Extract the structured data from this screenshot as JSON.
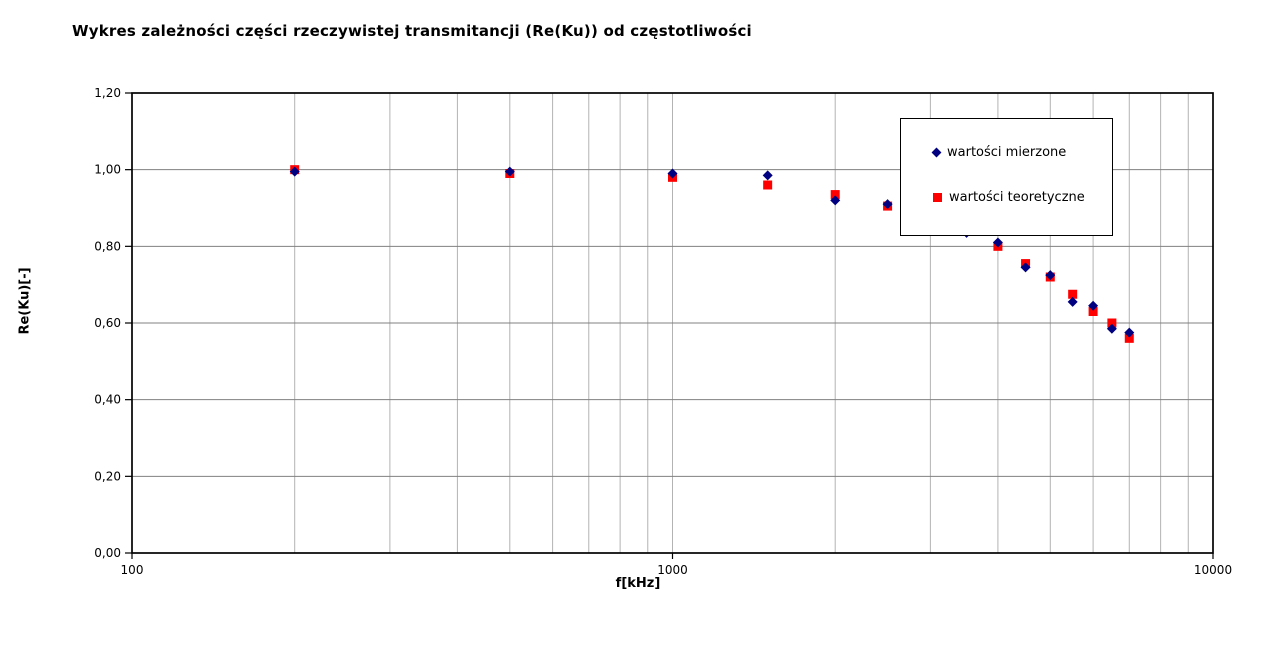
{
  "title": "Wykres zależności części rzeczywistej transmitancji (Re(Ku)) od częstotliwości",
  "y_axis": {
    "label": "Re(Ku)[-]",
    "ticks": [
      "0,00",
      "0,20",
      "0,40",
      "0,60",
      "0,80",
      "1,00",
      "1,20"
    ]
  },
  "x_axis": {
    "label": "f[kHz]",
    "ticks": [
      "100",
      "1000",
      "10000"
    ]
  },
  "legend": {
    "items": [
      {
        "label": "wartości mierzone",
        "marker": "diamond-icon",
        "color": "#000080"
      },
      {
        "label": "wartości teoretyczne",
        "marker": "square-icon",
        "color": "#ff0000"
      }
    ]
  },
  "colors": {
    "measured_series": "#000080",
    "theoretical_series": "#ff0000",
    "major_gridline": "#808080",
    "minor_gridline": "#b3b3b3",
    "axis": "#000000"
  },
  "chart_data": {
    "type": "scatter",
    "title": "Wykres zależności części rzeczywistej transmitancji (Re(Ku)) od częstotliwości",
    "xlabel": "f[kHz]",
    "ylabel": "Re(Ku)[-]",
    "x_scale": "log",
    "xlim": [
      100,
      10000
    ],
    "ylim": [
      0.0,
      1.2
    ],
    "y_tick_step": 0.2,
    "grid": true,
    "legend_position": "inside-upper-right",
    "x": [
      200,
      500,
      1000,
      1500,
      2000,
      2500,
      3500,
      4000,
      4500,
      5000,
      5500,
      6000,
      6500,
      7000
    ],
    "series": [
      {
        "name": "wartości mierzone",
        "marker": "diamond",
        "color": "#000080",
        "values": [
          0.995,
          0.995,
          0.99,
          0.985,
          0.92,
          0.91,
          0.835,
          0.81,
          0.745,
          0.725,
          0.655,
          0.645,
          0.585,
          0.575
        ]
      },
      {
        "name": "wartości teoretyczne",
        "marker": "square",
        "color": "#ff0000",
        "values": [
          1.0,
          0.99,
          0.98,
          0.96,
          0.935,
          0.905,
          0.84,
          0.8,
          0.755,
          0.72,
          0.675,
          0.63,
          0.6,
          0.56
        ]
      }
    ]
  }
}
